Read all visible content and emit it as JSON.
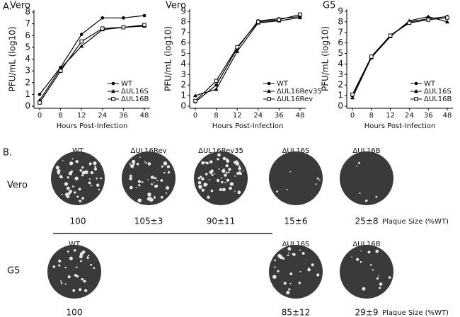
{
  "chart_data": [
    {
      "type": "line",
      "title": "Vero",
      "ylabel": "PFU/mL (log10)",
      "xlabel": "Hours Post-Infection",
      "categories": [
        "0",
        "8",
        "12",
        "24",
        "36",
        "48"
      ],
      "ylim": [
        0,
        8
      ],
      "yticks": [
        0,
        1,
        2,
        3,
        4,
        5,
        6,
        7,
        8
      ],
      "legend": "lower right",
      "series": [
        {
          "name": "WT",
          "color": "#000000",
          "marker": "circle",
          "values": [
            1.0,
            3.3,
            6.1,
            7.5,
            7.5,
            7.7
          ]
        },
        {
          "name": "ΔUL16S",
          "color": "#000000",
          "marker": "triangle",
          "values": [
            0.5,
            3.2,
            5.1,
            6.5,
            6.7,
            6.8
          ]
        },
        {
          "name": "ΔUL16B",
          "color": "#000000",
          "marker": "open-square",
          "values": [
            0.3,
            3.0,
            5.5,
            6.6,
            6.7,
            6.9
          ]
        }
      ]
    },
    {
      "type": "line",
      "title": "Vero",
      "ylabel": "PFU/mL (log10)",
      "xlabel": "Hours Post-Infection",
      "categories": [
        "0",
        "8",
        "12",
        "24",
        "36",
        "48"
      ],
      "ylim": [
        0,
        9
      ],
      "yticks": [
        0,
        1,
        2,
        3,
        4,
        5,
        6,
        7,
        8,
        9
      ],
      "legend": "lower right",
      "series": [
        {
          "name": "WT",
          "color": "#000000",
          "marker": "circle",
          "values": [
            0.4,
            2.0,
            5.5,
            8.1,
            8.3,
            8.5
          ]
        },
        {
          "name": "ΔUL16Rev35",
          "color": "#000000",
          "marker": "triangle",
          "values": [
            1.0,
            1.6,
            5.2,
            7.9,
            8.1,
            8.4
          ]
        },
        {
          "name": "ΔUL16Rev",
          "color": "#000000",
          "marker": "open-square",
          "values": [
            0.5,
            2.4,
            5.6,
            8.0,
            8.2,
            8.7
          ]
        }
      ]
    },
    {
      "type": "line",
      "title": "G5",
      "ylabel": "PFU/mL (log10)",
      "xlabel": "Hours Post-Infection",
      "categories": [
        "0",
        "8",
        "12",
        "24",
        "36",
        "48"
      ],
      "ylim": [
        0,
        9
      ],
      "yticks": [
        0,
        1,
        2,
        3,
        4,
        5,
        6,
        7,
        8,
        9
      ],
      "legend": "lower right",
      "series": [
        {
          "name": "WT",
          "color": "#000000",
          "marker": "circle",
          "values": [
            1.0,
            4.7,
            6.7,
            8.0,
            8.3,
            8.5
          ]
        },
        {
          "name": "ΔUL16S",
          "color": "#000000",
          "marker": "triangle",
          "values": [
            0.8,
            4.6,
            6.6,
            8.1,
            8.5,
            8.0
          ]
        },
        {
          "name": "ΔUL16B",
          "color": "#000000",
          "marker": "open-square",
          "values": [
            1.1,
            4.7,
            6.7,
            7.9,
            8.2,
            8.4
          ]
        }
      ]
    }
  ],
  "panel_a": {
    "label": "A."
  },
  "panel_b": {
    "label": "B.",
    "size_label": "Plaque Size (%WT)",
    "rows": [
      {
        "name": "Vero",
        "wells": [
          {
            "header": "WT",
            "size": "100"
          },
          {
            "header": "ΔUL16Rev",
            "size": "105±3"
          },
          {
            "header": "ΔUL16Rev35",
            "size": "90±11"
          },
          {
            "header": "ΔUL16S",
            "size": "15±6"
          },
          {
            "header": "ΔUL16B",
            "size": "25±8"
          }
        ]
      },
      {
        "name": "G5",
        "wells": [
          {
            "header": "WT",
            "size": "100"
          },
          null,
          null,
          {
            "header": "ΔUL16S",
            "size": "85±12"
          },
          {
            "header": "ΔUL16B",
            "size": "29±9"
          }
        ]
      }
    ]
  }
}
